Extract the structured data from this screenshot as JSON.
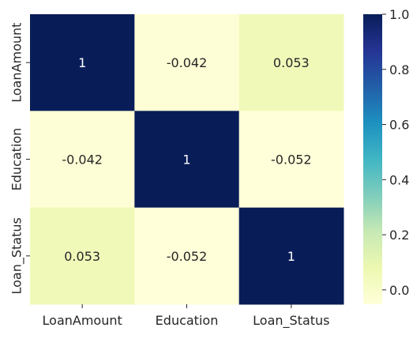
{
  "chart_data": {
    "type": "heatmap",
    "title": "",
    "xlabel": "",
    "ylabel": "",
    "x_categories": [
      "LoanAmount",
      "Education",
      "Loan_Status"
    ],
    "y_categories": [
      "LoanAmount",
      "Education",
      "Loan_Status"
    ],
    "values": [
      [
        1,
        -0.042,
        0.053
      ],
      [
        -0.042,
        1,
        -0.052
      ],
      [
        0.053,
        -0.052,
        1
      ]
    ],
    "annotations": [
      [
        "1",
        "-0.042",
        "0.053"
      ],
      [
        "-0.042",
        "1",
        "-0.052"
      ],
      [
        "0.053",
        "-0.052",
        "1"
      ]
    ],
    "colormap": "YlGnBu",
    "color_range": [
      -0.052,
      1.0
    ],
    "colorbar": {
      "ticks": [
        0.0,
        0.2,
        0.4,
        0.6,
        0.8,
        1.0
      ],
      "tick_labels": [
        "0.0",
        "0.2",
        "0.4",
        "0.6",
        "0.8",
        "1.0"
      ]
    },
    "annotation_colors": {
      "light": "#ffffff",
      "dark": "#262626"
    }
  }
}
